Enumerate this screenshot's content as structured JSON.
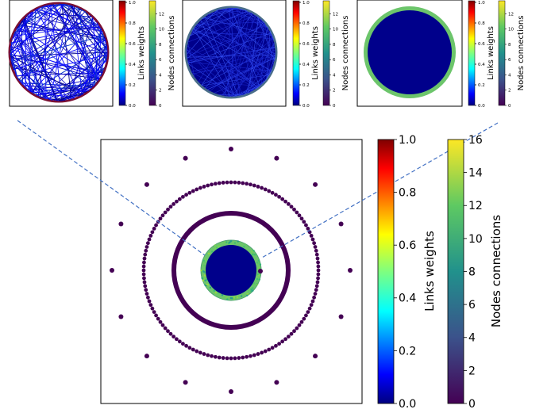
{
  "chart_data": {
    "type": "scatter",
    "description_of_layers": [
      "outer isolated nodes",
      "dotted ring",
      "solid ring",
      "green connected ring",
      "dense core"
    ],
    "main": {
      "colorbars": [
        {
          "label": "Links weights",
          "colormap": "jet",
          "range": [
            0,
            1
          ],
          "ticks": [
            "0.0",
            "0.2",
            "0.4",
            "0.6",
            "0.8",
            "1.0"
          ]
        },
        {
          "label": "Nodes connections",
          "colormap": "viridis",
          "range": [
            0,
            16
          ],
          "ticks": [
            "0",
            "2",
            "4",
            "6",
            "8",
            "10",
            "12",
            "14",
            "16"
          ]
        }
      ],
      "layers": {
        "outer_isolated_nodes": 16,
        "dotted_ring_nodes": 140,
        "solid_ring": true,
        "connected_ring": true,
        "core": true
      },
      "node_color": "#440154",
      "core_color": "#00008b",
      "connector_color": "#4472c4"
    },
    "insets": [
      {
        "panel": "inset-1",
        "link_density": "sparse",
        "colorbars": [
          {
            "label": "Links weights",
            "ticks": [
              "0.0",
              "0.2",
              "0.4",
              "0.6",
              "0.8",
              "1.0"
            ]
          },
          {
            "label": "Nodes connections",
            "ticks": [
              "0",
              "2",
              "4",
              "6",
              "8",
              "10",
              "12"
            ]
          }
        ]
      },
      {
        "panel": "inset-2",
        "link_density": "medium",
        "colorbars": [
          {
            "label": "Links weights",
            "ticks": [
              "0.0",
              "0.2",
              "0.4",
              "0.6",
              "0.8",
              "1.0"
            ]
          },
          {
            "label": "Nodes connections",
            "ticks": [
              "0",
              "2",
              "4",
              "6",
              "8",
              "10",
              "12"
            ]
          }
        ]
      },
      {
        "panel": "inset-3",
        "link_density": "dense",
        "colorbars": [
          {
            "label": "Links weights",
            "ticks": [
              "0.0",
              "0.2",
              "0.4",
              "0.6",
              "0.8",
              "1.0"
            ]
          },
          {
            "label": "Nodes connections",
            "ticks": [
              "0",
              "2",
              "4",
              "6",
              "8",
              "10",
              "12"
            ]
          }
        ]
      }
    ]
  }
}
